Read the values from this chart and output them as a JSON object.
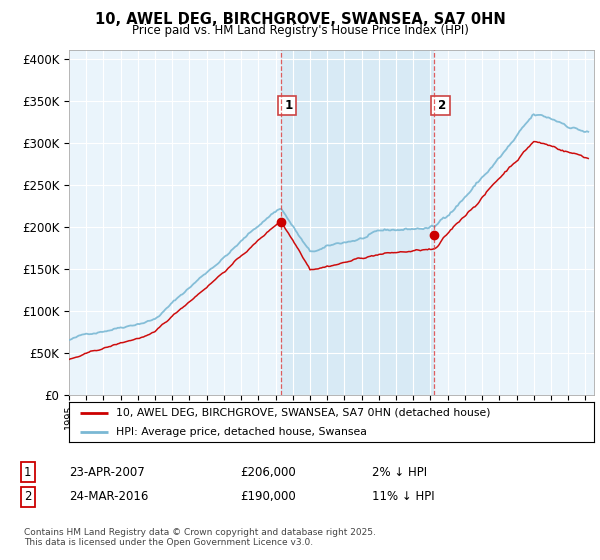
{
  "title": "10, AWEL DEG, BIRCHGROVE, SWANSEA, SA7 0HN",
  "subtitle": "Price paid vs. HM Land Registry's House Price Index (HPI)",
  "ylabel_ticks": [
    "£0",
    "£50K",
    "£100K",
    "£150K",
    "£200K",
    "£250K",
    "£300K",
    "£350K",
    "£400K"
  ],
  "ytick_values": [
    0,
    50000,
    100000,
    150000,
    200000,
    250000,
    300000,
    350000,
    400000
  ],
  "ylim": [
    0,
    410000
  ],
  "xlim_start": 1995.0,
  "xlim_end": 2025.5,
  "hpi_color": "#7ab8d4",
  "price_color": "#cc0000",
  "shade_color": "#d8eaf5",
  "marker1_x": 2007.31,
  "marker1_y": 206000,
  "marker2_x": 2016.23,
  "marker2_y": 190000,
  "vline1_x": 2007.31,
  "vline2_x": 2016.23,
  "legend_line1": "10, AWEL DEG, BIRCHGROVE, SWANSEA, SA7 0HN (detached house)",
  "legend_line2": "HPI: Average price, detached house, Swansea",
  "table_row1_num": "1",
  "table_row1_date": "23-APR-2007",
  "table_row1_price": "£206,000",
  "table_row1_hpi": "2% ↓ HPI",
  "table_row2_num": "2",
  "table_row2_date": "24-MAR-2016",
  "table_row2_price": "£190,000",
  "table_row2_hpi": "11% ↓ HPI",
  "footer": "Contains HM Land Registry data © Crown copyright and database right 2025.\nThis data is licensed under the Open Government Licence v3.0.",
  "bg_color": "#eaf4fb",
  "fig_bg": "#ffffff"
}
